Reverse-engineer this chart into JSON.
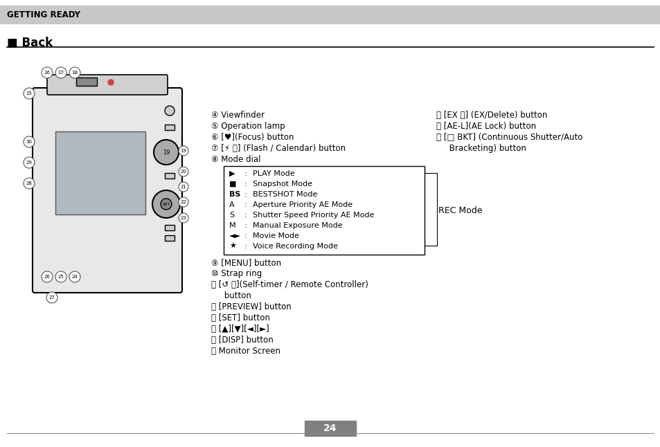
{
  "bg_color": "#ffffff",
  "header_bg": "#c8c8c8",
  "header_text": "GETTING READY",
  "header_text_color": "#000000",
  "section_title": "■ Back",
  "page_number": "24",
  "page_num_bg": "#808080",
  "page_num_color": "#ffffff",
  "col1_items": [
    "④ Viewfinder",
    "⑤ Operation lamp",
    "⑥ [♥](Focus) button",
    "⑦ [⚡ 📅] (Flash / Calendar) button",
    "⑧ Mode dial"
  ],
  "mode_dial_items": [
    [
      "▶",
      "PLAY Mode"
    ],
    [
      "■",
      "Snapshot Mode"
    ],
    [
      "BS",
      "BESTSHOT Mode"
    ],
    [
      "A",
      "Aperture Priority AE Mode"
    ],
    [
      "S",
      "Shutter Speed Priority AE Mode"
    ],
    [
      "M",
      "Manual Exposure Mode"
    ],
    [
      "◄►",
      "Movie Mode"
    ],
    [
      "★",
      "Voice Recording Mode"
    ]
  ],
  "col1_items2": [
    "⑨ [MENU] button",
    "⑩ Strap ring",
    "⑪ [↺ 📷](Self-timer / Remote Controller)\n     button",
    "⑫ [PREVIEW] button",
    "⑬ [SET] button",
    "⑭ [▲][▼][◄][►]",
    "⑮ [DISP] button",
    "⑯ Monitor Screen"
  ],
  "col2_items": [
    "⑶ [EX 🗑] (EX/Delete) button",
    "⑷ [AE-L](AE Lock) button",
    "⑸ [□ BKT] (Continuous Shutter/Auto\n     Bracketing) button"
  ],
  "rec_mode_label": "REC Mode"
}
